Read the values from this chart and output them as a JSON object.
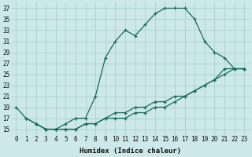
{
  "xlabel": "Humidex (Indice chaleur)",
  "ylabel": "",
  "background_color": "#cce8e8",
  "grid_color": "#aed4d4",
  "line_color": "#1a6b5a",
  "xlim": [
    -0.5,
    23.5
  ],
  "ylim": [
    14,
    38
  ],
  "xticks": [
    0,
    1,
    2,
    3,
    4,
    5,
    6,
    7,
    8,
    9,
    10,
    11,
    12,
    13,
    14,
    15,
    16,
    17,
    18,
    19,
    20,
    21,
    22,
    23
  ],
  "yticks": [
    15,
    17,
    19,
    21,
    23,
    25,
    27,
    29,
    31,
    33,
    35,
    37
  ],
  "line1_x": [
    0,
    1,
    2,
    3,
    4,
    5,
    6,
    7,
    8,
    9,
    10,
    11,
    12,
    13,
    14,
    15,
    16,
    17,
    18,
    19,
    20,
    21,
    22,
    23
  ],
  "line1_y": [
    19,
    17,
    16,
    15,
    15,
    16,
    17,
    17,
    21,
    28,
    31,
    33,
    32,
    34,
    36,
    37,
    37,
    37,
    35,
    31,
    29,
    28,
    26,
    26
  ],
  "line2_x": [
    1,
    2,
    3,
    4,
    5,
    6,
    7,
    8,
    9,
    10,
    11,
    12,
    13,
    14,
    15,
    16,
    17,
    18,
    19,
    20,
    21,
    22,
    23
  ],
  "line2_y": [
    17,
    16,
    15,
    15,
    15,
    15,
    16,
    16,
    17,
    17,
    17,
    18,
    18,
    19,
    19,
    20,
    21,
    22,
    23,
    24,
    26,
    26,
    26
  ],
  "line3_x": [
    2,
    3,
    4,
    5,
    6,
    7,
    8,
    9,
    10,
    11,
    12,
    13,
    14,
    15,
    16,
    17,
    18,
    19,
    20,
    21,
    22,
    23
  ],
  "line3_y": [
    16,
    15,
    15,
    15,
    15,
    16,
    16,
    17,
    18,
    18,
    19,
    19,
    20,
    20,
    21,
    21,
    22,
    23,
    24,
    25,
    26,
    26
  ]
}
